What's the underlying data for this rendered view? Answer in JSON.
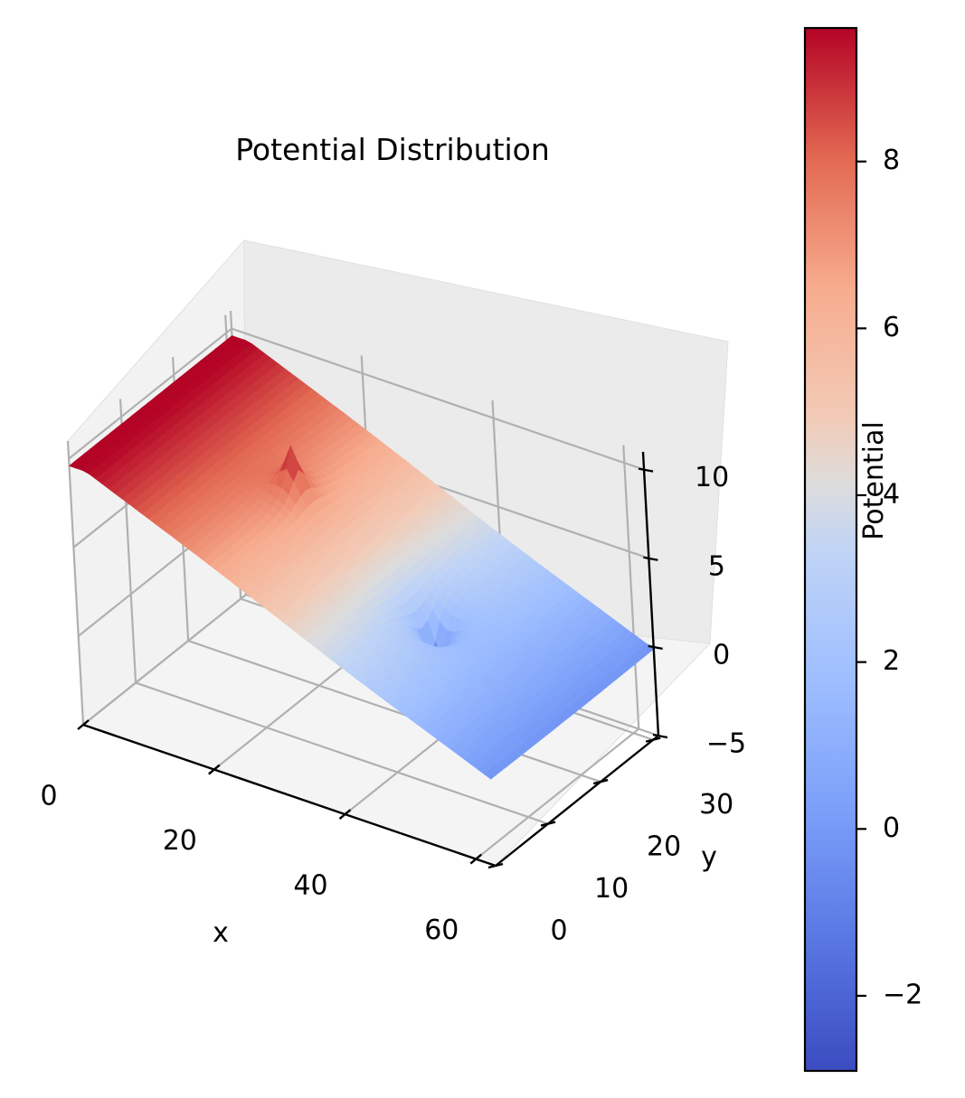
{
  "chart_data": {
    "type": "surface3d",
    "title": "Potential Distribution",
    "xlabel": "x",
    "ylabel": "y",
    "zlabel": "",
    "xlim": [
      0,
      63
    ],
    "ylim": [
      0,
      31
    ],
    "zlim": [
      -5,
      11
    ],
    "x_ticks": [
      0,
      20,
      40,
      60
    ],
    "y_ticks": [
      0,
      10,
      20,
      30
    ],
    "z_ticks": [
      -5,
      0,
      5,
      10
    ],
    "x_tick_labels": [
      "0",
      "20",
      "40",
      "60"
    ],
    "y_tick_labels": [
      "0",
      "10",
      "20",
      "30"
    ],
    "z_tick_labels": [
      "−5",
      "0",
      "5",
      "10"
    ],
    "grid": true,
    "colormap": "coolwarm",
    "surface": {
      "boundary_left_x0": 10,
      "boundary_right_x63": 0,
      "point_charges": [
        {
          "x": 21,
          "y": 16,
          "peak_value": 9.6,
          "sign": "positive"
        },
        {
          "x": 42,
          "y": 16,
          "peak_value": -2.9,
          "sign": "negative"
        }
      ]
    },
    "colorbar": {
      "label": "Potential",
      "vmin": -2.9,
      "vmax": 9.6,
      "ticks": [
        -2,
        0,
        2,
        4,
        6,
        8
      ],
      "tick_labels": [
        "−2",
        "0",
        "2",
        "4",
        "6",
        "8"
      ]
    }
  }
}
